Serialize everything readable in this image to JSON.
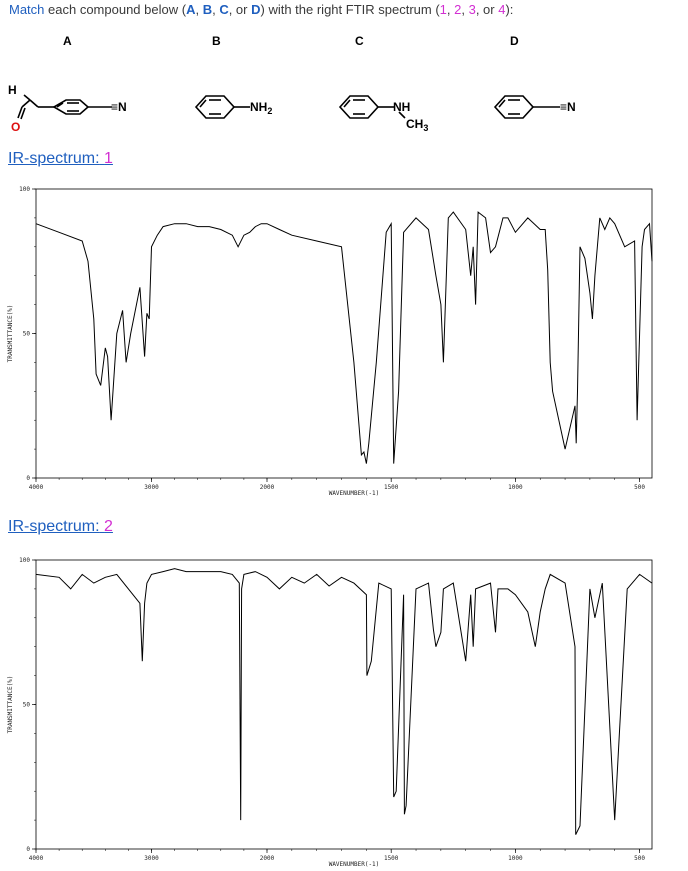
{
  "question": {
    "w1": "Match",
    "w2": " each compound below (",
    "A": "A",
    "c1": ", ",
    "B": "B",
    "c2": ", ",
    "C": "C",
    "c3": ", or ",
    "D": "D",
    "w3": ") with the right FTIR spectrum (",
    "n1": "1",
    "c4": ", ",
    "n2": "2",
    "c5": ", ",
    "n3": "3",
    "c6": ", or ",
    "n4": "4",
    "w4": "):"
  },
  "compounds": [
    {
      "letter": "A",
      "label_left": "H",
      "label_right": "≡N",
      "label_o": "O"
    },
    {
      "letter": "B",
      "label": "NH",
      "sub": "2"
    },
    {
      "letter": "C",
      "label": "NH",
      "label2": "CH",
      "sub2": "3"
    },
    {
      "letter": "D",
      "label": "≡N"
    }
  ],
  "spectra": [
    {
      "title": "IR-spectrum:",
      "number": "1",
      "ylabel": "TRANSMITTANCE(%)",
      "xlabel": "WAVENUMBER(-1)",
      "yticks": [
        "100",
        "50",
        "0"
      ],
      "xticks": [
        "4000",
        "3000",
        "2000",
        "1500",
        "1000",
        "500"
      ]
    },
    {
      "title": "IR-spectrum:",
      "number": "2",
      "ylabel": "TRANSMITTANCE(%)",
      "xlabel": "WAVENUMBER(-1)",
      "yticks": [
        "100",
        "50",
        "0"
      ],
      "xticks": [
        "4000",
        "3000",
        "2000",
        "1500",
        "1000",
        "500"
      ]
    }
  ],
  "chart_data": [
    {
      "type": "line",
      "title": "IR-spectrum: 1",
      "xlabel": "WAVENUMBER(-1)",
      "ylabel": "TRANSMITTANCE(%)",
      "xlim": [
        4000,
        450
      ],
      "ylim": [
        0,
        100
      ],
      "x": [
        4000,
        3800,
        3600,
        3550,
        3500,
        3480,
        3440,
        3400,
        3380,
        3350,
        3300,
        3250,
        3220,
        3180,
        3100,
        3060,
        3040,
        3020,
        3000,
        2950,
        2900,
        2800,
        2700,
        2600,
        2500,
        2400,
        2300,
        2250,
        2200,
        2150,
        2100,
        2050,
        2000,
        1950,
        1900,
        1800,
        1700,
        1650,
        1620,
        1610,
        1600,
        1590,
        1560,
        1520,
        1500,
        1490,
        1470,
        1450,
        1400,
        1350,
        1320,
        1300,
        1290,
        1270,
        1250,
        1200,
        1180,
        1170,
        1160,
        1150,
        1120,
        1100,
        1080,
        1050,
        1030,
        1000,
        950,
        900,
        880,
        870,
        860,
        850,
        800,
        760,
        755,
        750,
        740,
        720,
        700,
        690,
        680,
        660,
        640,
        620,
        600,
        560,
        520,
        510,
        500,
        490,
        480,
        460,
        450
      ],
      "y": [
        88,
        85,
        82,
        75,
        55,
        36,
        32,
        45,
        42,
        20,
        50,
        58,
        40,
        50,
        66,
        42,
        57,
        55,
        80,
        84,
        87,
        88,
        88,
        87,
        87,
        86,
        84,
        80,
        84,
        85,
        87,
        88,
        88,
        86,
        84,
        82,
        80,
        40,
        8,
        9,
        5,
        12,
        40,
        85,
        88,
        5,
        30,
        85,
        90,
        86,
        70,
        60,
        40,
        90,
        92,
        86,
        70,
        80,
        60,
        92,
        90,
        78,
        80,
        90,
        90,
        85,
        90,
        86,
        86,
        72,
        40,
        30,
        10,
        25,
        12,
        30,
        80,
        76,
        64,
        55,
        70,
        90,
        86,
        90,
        88,
        80,
        82,
        20,
        50,
        80,
        86,
        88,
        75
      ]
    },
    {
      "type": "line",
      "title": "IR-spectrum: 2",
      "xlabel": "WAVENUMBER(-1)",
      "ylabel": "TRANSMITTANCE(%)",
      "xlim": [
        4000,
        450
      ],
      "ylim": [
        0,
        100
      ],
      "x": [
        4000,
        3800,
        3700,
        3600,
        3500,
        3400,
        3300,
        3200,
        3100,
        3080,
        3060,
        3040,
        3000,
        2900,
        2800,
        2700,
        2600,
        2400,
        2300,
        2240,
        2228,
        2220,
        2200,
        2100,
        2000,
        1950,
        1900,
        1850,
        1800,
        1750,
        1700,
        1650,
        1600,
        1598,
        1580,
        1550,
        1500,
        1490,
        1480,
        1450,
        1447,
        1440,
        1400,
        1350,
        1330,
        1320,
        1300,
        1290,
        1250,
        1200,
        1180,
        1170,
        1160,
        1100,
        1080,
        1070,
        1030,
        1000,
        950,
        920,
        900,
        880,
        860,
        800,
        760,
        757,
        740,
        700,
        690,
        680,
        650,
        600,
        550,
        500,
        450
      ],
      "y": [
        95,
        94,
        90,
        95,
        92,
        94,
        95,
        90,
        85,
        65,
        85,
        92,
        95,
        96,
        97,
        96,
        96,
        96,
        95,
        92,
        10,
        90,
        95,
        96,
        94,
        90,
        94,
        92,
        95,
        91,
        94,
        92,
        88,
        60,
        65,
        92,
        90,
        18,
        20,
        88,
        12,
        15,
        90,
        92,
        76,
        70,
        75,
        90,
        92,
        65,
        88,
        70,
        90,
        92,
        75,
        90,
        90,
        88,
        82,
        70,
        82,
        90,
        95,
        92,
        70,
        5,
        8,
        90,
        85,
        80,
        92,
        10,
        90,
        95,
        92
      ]
    }
  ]
}
